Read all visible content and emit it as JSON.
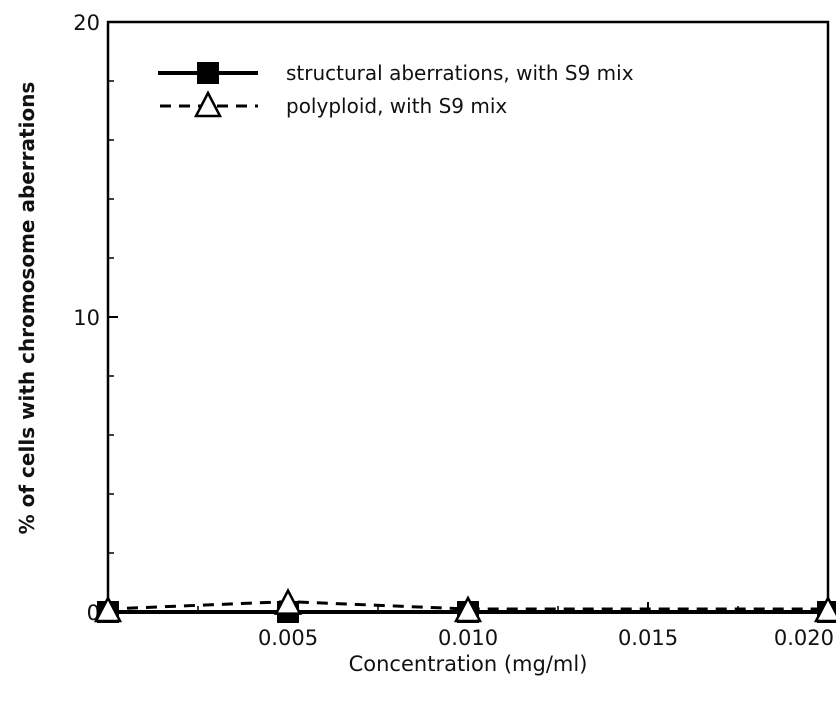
{
  "chart_data": {
    "type": "line",
    "title": "",
    "xlabel": "Concentration (mg/ml)",
    "ylabel": "% of cells with chromosome aberrations",
    "xlim": [
      0,
      0.02
    ],
    "ylim": [
      0,
      20
    ],
    "x_ticks": [
      0.005,
      0.01,
      0.015,
      0.02
    ],
    "x_tick_labels": [
      "0.005",
      "0.010",
      "0.015",
      "0.020"
    ],
    "y_ticks": [
      0,
      10,
      20
    ],
    "y_tick_labels": [
      "0",
      "10",
      "20"
    ],
    "grid": false,
    "legend_position": "top-left",
    "x": [
      0,
      0.005,
      0.01,
      0.02
    ],
    "series": [
      {
        "name": "structural aberrations, with S9 mix",
        "marker": "filled-square",
        "line": "solid",
        "color": "#000000",
        "values": [
          0,
          0,
          0,
          0
        ]
      },
      {
        "name": "polyploid, with S9 mix",
        "marker": "open-triangle",
        "line": "dashed",
        "color": "#000000",
        "values": [
          0,
          0.25,
          0,
          0
        ]
      }
    ]
  }
}
